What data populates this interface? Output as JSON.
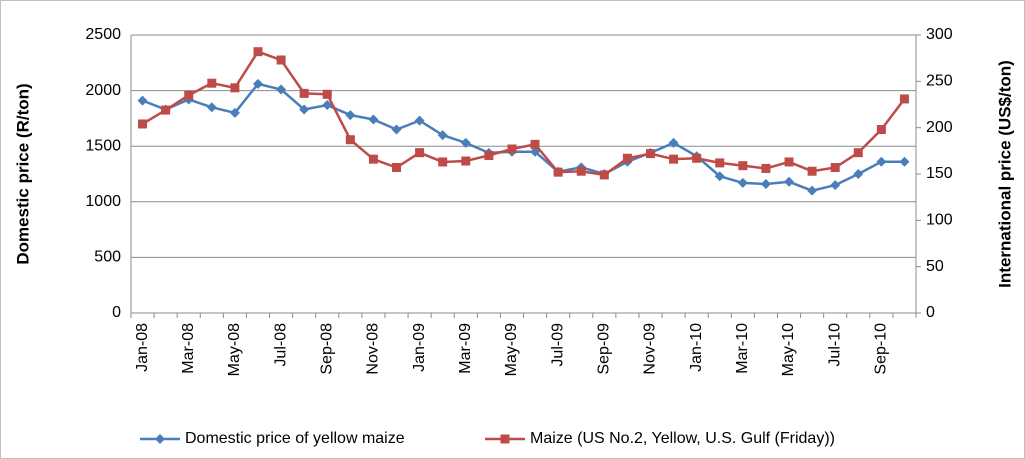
{
  "chart_data": {
    "type": "line",
    "categories": [
      "Jan-08",
      null,
      "Mar-08",
      null,
      "May-08",
      null,
      "Jul-08",
      null,
      "Sep-08",
      null,
      "Nov-08",
      null,
      "Jan-09",
      null,
      "Mar-09",
      null,
      "May-09",
      null,
      "Jul-09",
      null,
      "Sep-09",
      null,
      "Nov-09",
      null,
      "Jan-10",
      null,
      "Mar-10",
      null,
      "May-10",
      null,
      "Jul-10",
      null,
      "Sep-10",
      null
    ],
    "series": [
      {
        "name": "Domestic price of yellow maize",
        "color": "#4a7ebb",
        "marker": "diamond",
        "values": [
          1910,
          1830,
          1920,
          1850,
          1800,
          2060,
          2010,
          1830,
          1870,
          1780,
          1740,
          1650,
          1730,
          1600,
          1530,
          1440,
          1450,
          1450,
          1270,
          1310,
          1250,
          1360,
          1440,
          1530,
          1410,
          1230,
          1170,
          1160,
          1180,
          1100,
          1150,
          1250,
          1360,
          1360
        ]
      },
      {
        "name": "Maize (US No.2, Yellow, U.S. Gulf (Friday))",
        "color": "#be4b48",
        "marker": "square",
        "axis": "y2",
        "values": [
          204,
          219,
          235,
          248,
          243,
          282,
          273,
          237,
          236,
          187,
          166,
          157,
          173,
          163,
          164,
          170,
          177,
          182,
          152,
          153,
          149,
          167,
          172,
          166,
          167,
          162,
          159,
          156,
          163,
          153,
          157,
          173,
          198,
          231
        ]
      }
    ],
    "y_label": "Domestic price (R/ton)",
    "y2_label": "International price (US$/ton)",
    "ylim": [
      0,
      2500
    ],
    "yticks": [
      0,
      500,
      1000,
      1500,
      2000,
      2500
    ],
    "y2lim": [
      0,
      300
    ],
    "y2ticks": [
      0,
      50,
      100,
      150,
      200,
      250,
      300
    ],
    "grid": true,
    "legend": "bottom"
  }
}
